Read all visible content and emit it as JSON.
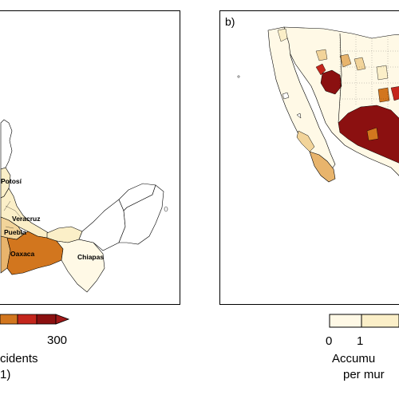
{
  "panel_a": {
    "letter": "",
    "state_labels": [
      "Veracruz",
      "Puebla",
      "Oaxaca",
      "Chiapas",
      "Potosí"
    ],
    "legend": {
      "tick_right": "300",
      "title_line1": "cidents",
      "title_line2": "1)"
    }
  },
  "panel_b": {
    "letter": "b)",
    "legend": {
      "tick_0": "0",
      "tick_1": "1",
      "title_line1": "Accumu",
      "title_line2": "per mur"
    }
  },
  "colors": {
    "dark_red": "#8b1010",
    "red": "#c4261c",
    "orange": "#d2761e",
    "light_orange": "#e8b46c",
    "tan": "#f2d49a",
    "cream": "#fbefc8",
    "pale": "#fff9e6"
  }
}
